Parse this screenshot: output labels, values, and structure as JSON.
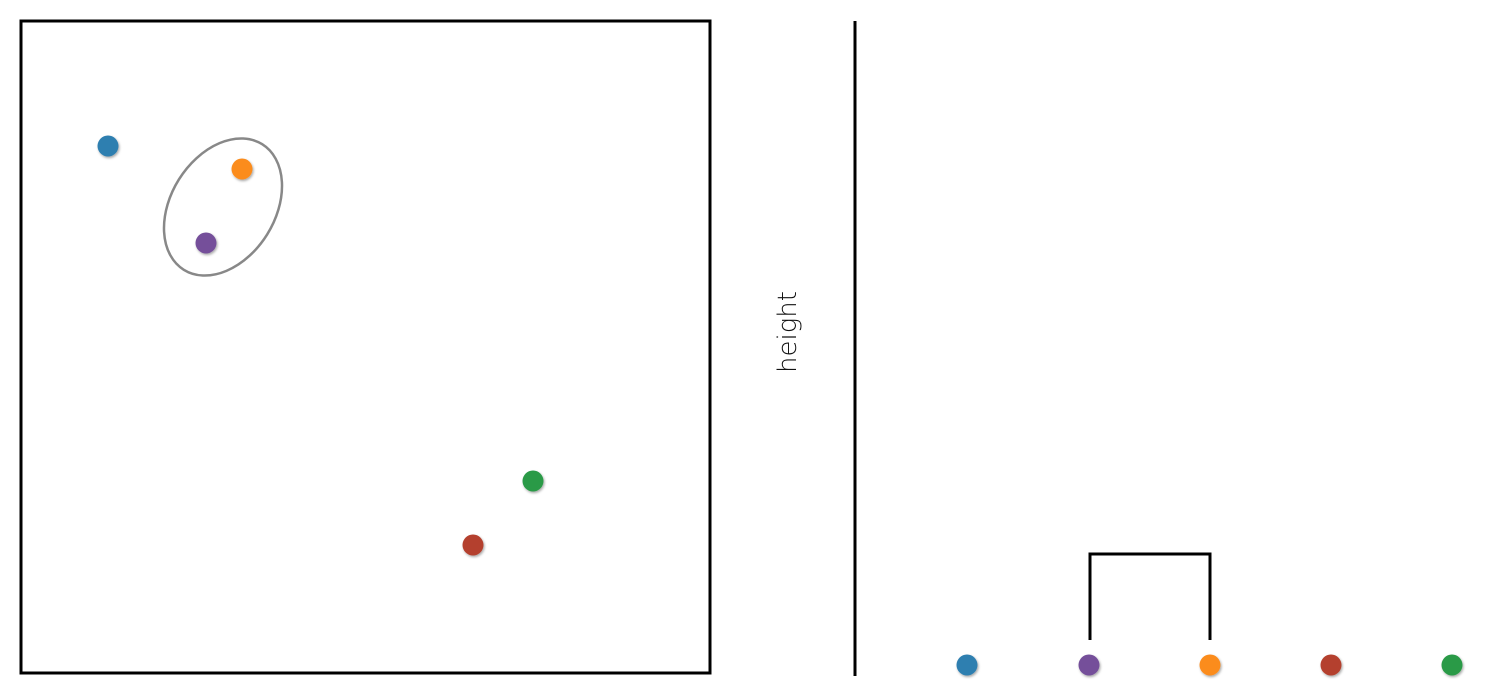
{
  "diagram": {
    "type": "hierarchical-clustering-step",
    "dendrogram_axis_label": "height"
  },
  "points": [
    {
      "id": "blue",
      "color": "#2e7fb0"
    },
    {
      "id": "orange",
      "color": "#fb8c1e"
    },
    {
      "id": "purple",
      "color": "#75509a"
    },
    {
      "id": "green",
      "color": "#2a9a47"
    },
    {
      "id": "red",
      "color": "#b4412d"
    }
  ],
  "clusters": [
    {
      "members": [
        "purple",
        "orange"
      ]
    }
  ],
  "leaf_order": [
    "blue",
    "purple",
    "orange",
    "red",
    "green"
  ],
  "colors": {
    "frame": "#000000",
    "cluster_ellipse": "#888888",
    "dendrogram_line": "#000000"
  }
}
